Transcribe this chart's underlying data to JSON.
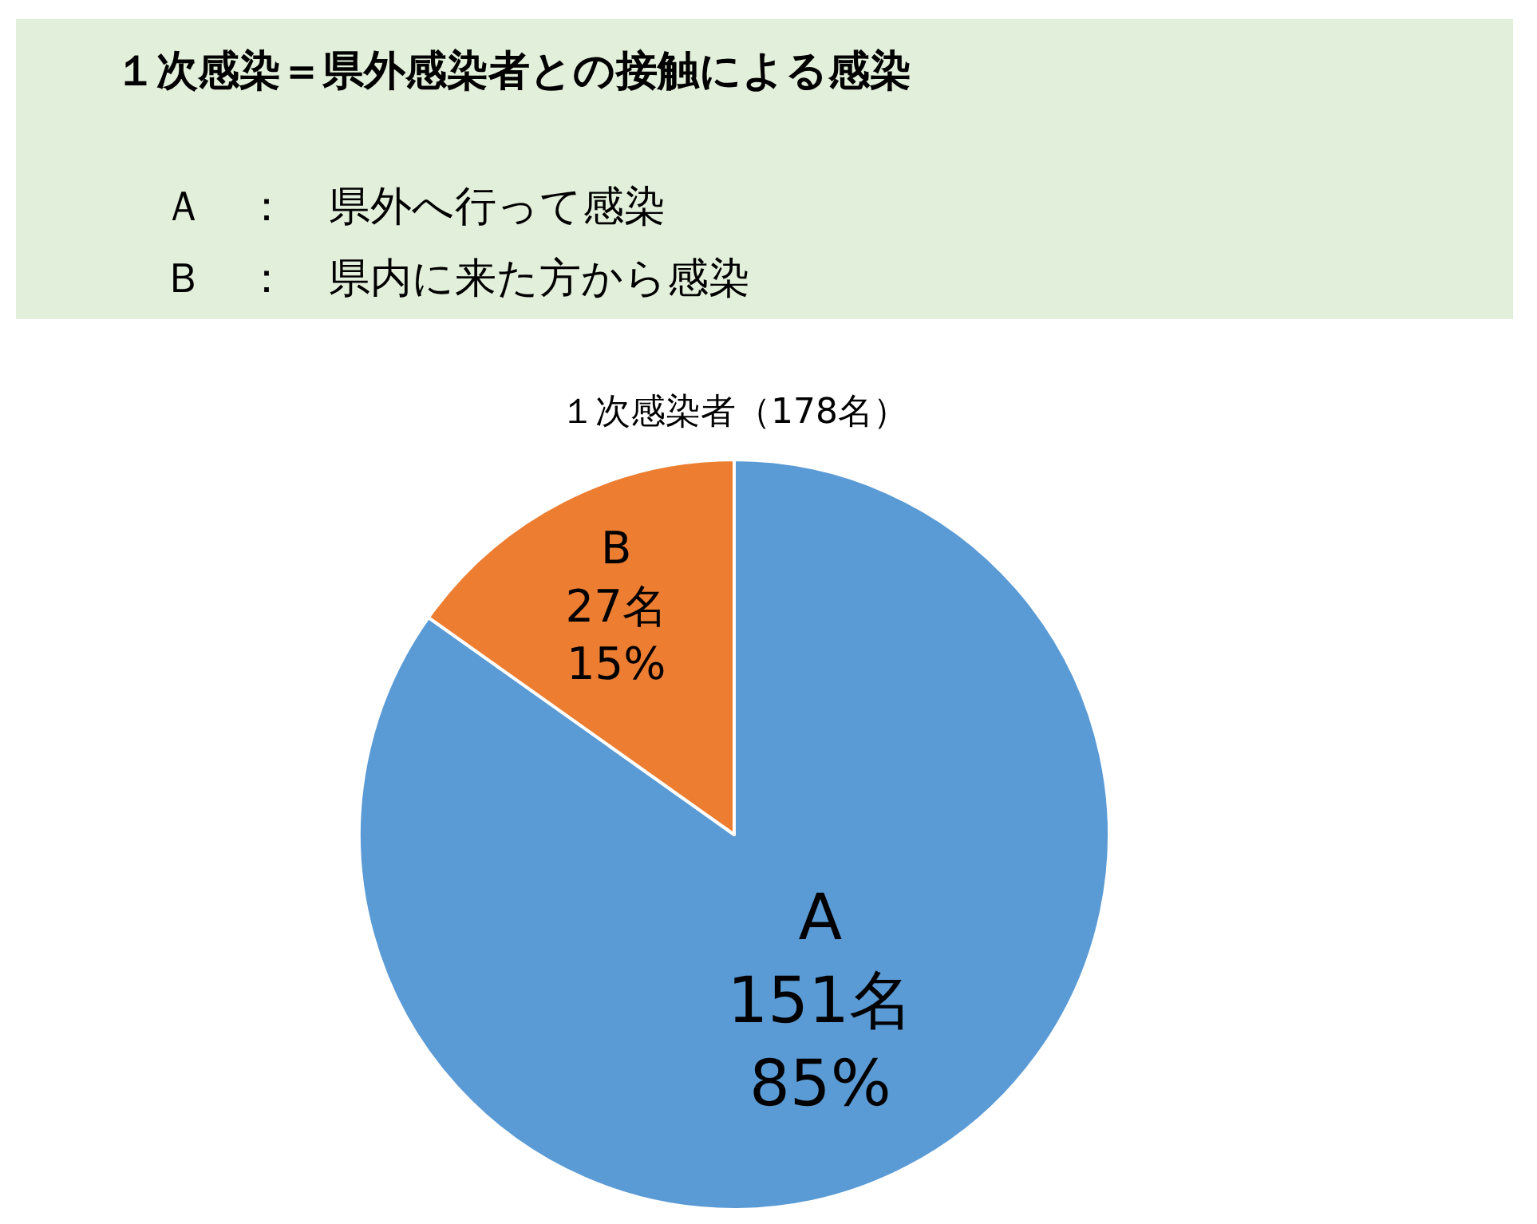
{
  "chart_data": {
    "type": "pie",
    "title": "１次感染＝県外感染者との接触による感染",
    "annotations": [
      "Ａ　：　県外へ行って感染",
      "Ｂ　：　県内に来た方から感染"
    ],
    "subtitle": "１次感染者（178名）",
    "categories": [
      "A",
      "B"
    ],
    "values": [
      151,
      27
    ],
    "value_labels": [
      "151名\n85%",
      "27名\n15%"
    ],
    "colors": [
      "#5b9bd5",
      "#ed7d31"
    ],
    "legend": false
  }
}
